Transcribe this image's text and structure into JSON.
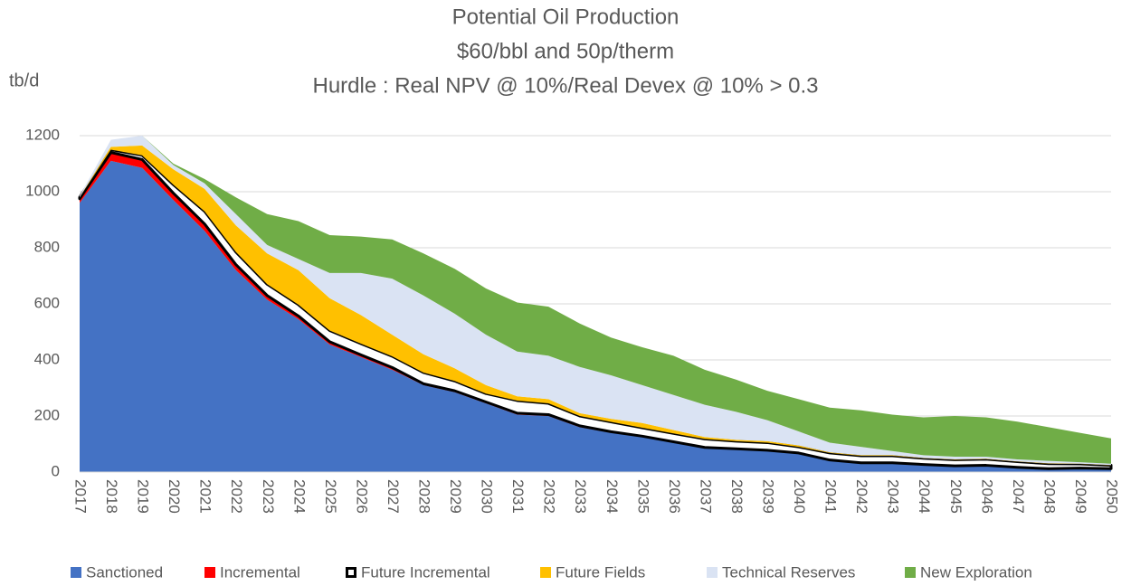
{
  "chart_data": {
    "type": "stacked_area",
    "title": [
      "Potential Oil Production",
      "$60/bbl and 50p/therm",
      "Hurdle : Real NPV @ 10%/Real Devex @ 10% > 0.3"
    ],
    "y_label": "tb/d",
    "categories": [
      "2017",
      "2018",
      "2019",
      "2020",
      "2021",
      "2022",
      "2023",
      "2024",
      "2025",
      "2026",
      "2027",
      "2028",
      "2029",
      "2030",
      "2031",
      "2032",
      "2033",
      "2034",
      "2035",
      "2036",
      "2037",
      "2038",
      "2039",
      "2040",
      "2041",
      "2042",
      "2043",
      "2044",
      "2045",
      "2046",
      "2047",
      "2048",
      "2049",
      "2050"
    ],
    "ylim": [
      0,
      1200
    ],
    "yticks": [
      0,
      200,
      400,
      600,
      800,
      1000,
      1200
    ],
    "grid": true,
    "legend": "bottom",
    "series": [
      {
        "name": "Sanctioned",
        "color": "#4472c4",
        "values": [
          960,
          1110,
          1085,
          970,
          860,
          720,
          615,
          545,
          455,
          410,
          365,
          310,
          285,
          245,
          205,
          200,
          160,
          140,
          125,
          105,
          85,
          80,
          75,
          65,
          40,
          30,
          30,
          25,
          20,
          22,
          15,
          10,
          12,
          10
        ]
      },
      {
        "name": "Incremental",
        "color": "#ff0000",
        "values": [
          15,
          30,
          30,
          25,
          25,
          20,
          15,
          12,
          10,
          8,
          8,
          5,
          5,
          5,
          5,
          5,
          5,
          4,
          3,
          3,
          3,
          3,
          3,
          3,
          3,
          3,
          3,
          2,
          2,
          2,
          2,
          2,
          2,
          2
        ]
      },
      {
        "name": "Future Incremental",
        "color": "#ffffff",
        "outline": "#000000",
        "values": [
          5,
          10,
          15,
          30,
          45,
          45,
          40,
          40,
          40,
          40,
          40,
          40,
          35,
          30,
          45,
          40,
          35,
          35,
          30,
          30,
          30,
          27,
          27,
          22,
          25,
          25,
          25,
          22,
          22,
          22,
          20,
          18,
          15,
          12
        ]
      },
      {
        "name": "Future Fields",
        "color": "#ffc000",
        "values": [
          0,
          10,
          35,
          55,
          80,
          95,
          110,
          123,
          115,
          102,
          77,
          65,
          45,
          30,
          15,
          15,
          10,
          11,
          17,
          12,
          7,
          5,
          5,
          5,
          2,
          2,
          2,
          1,
          1,
          1,
          1,
          1,
          1,
          1
        ]
      },
      {
        "name": "Technical Reserves",
        "color": "#dae3f3",
        "values": [
          5,
          25,
          35,
          15,
          20,
          40,
          30,
          40,
          90,
          150,
          200,
          210,
          195,
          180,
          160,
          155,
          165,
          155,
          135,
          125,
          115,
          100,
          75,
          50,
          35,
          30,
          15,
          10,
          10,
          8,
          7,
          9,
          5,
          5
        ]
      },
      {
        "name": "New Exploration",
        "color": "#70ad47",
        "values": [
          0,
          0,
          0,
          5,
          15,
          60,
          110,
          135,
          135,
          130,
          140,
          150,
          160,
          165,
          175,
          175,
          155,
          135,
          135,
          140,
          125,
          115,
          105,
          115,
          125,
          130,
          130,
          135,
          145,
          140,
          135,
          120,
          105,
          90
        ]
      }
    ]
  }
}
